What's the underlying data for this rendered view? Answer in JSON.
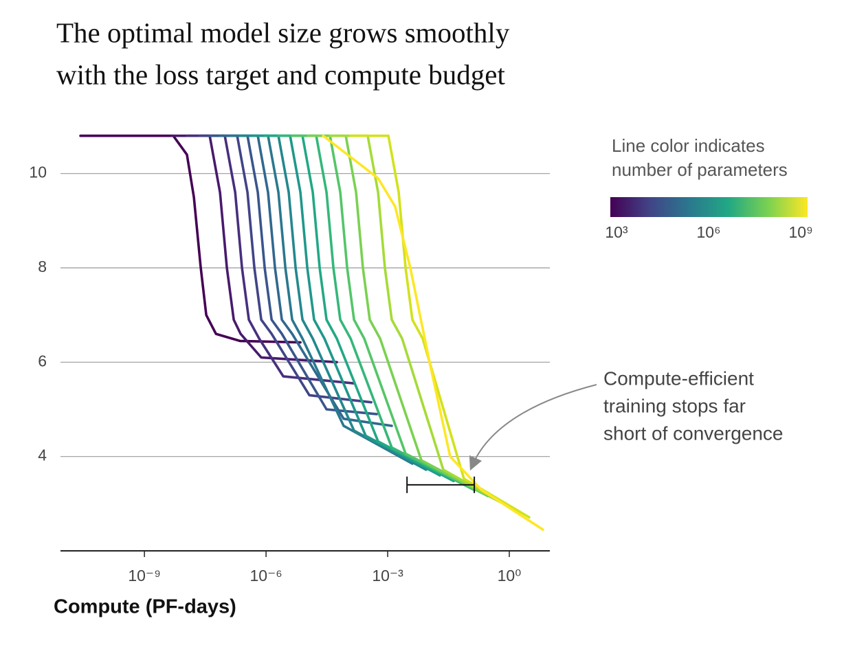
{
  "chart_data": {
    "type": "line",
    "title": [
      "The optimal model size grows smoothly",
      "with the loss target and compute budget"
    ],
    "x_label": "Compute (PF-days)",
    "xscale": "log",
    "xlim": [
      8.5e-12,
      10
    ],
    "xticks": [
      {
        "value": 1e-09,
        "label": "10⁻⁹"
      },
      {
        "value": 1e-06,
        "label": "10⁻⁶"
      },
      {
        "value": 0.001,
        "label": "10⁻³"
      },
      {
        "value": 1,
        "label": "10⁰"
      }
    ],
    "ylim": [
      2,
      11
    ],
    "yticks": [
      4,
      6,
      8,
      10
    ],
    "grid": true,
    "colorbar": {
      "title": [
        "Line color indicates",
        "number of parameters"
      ],
      "scale": "log",
      "lim": [
        631,
        1660000000
      ],
      "ticks": [
        {
          "value": 1000,
          "label": "10³"
        },
        {
          "value": 1000000,
          "label": "10⁶"
        },
        {
          "value": 1000000000,
          "label": "10⁹"
        }
      ],
      "colors": [
        "#440154",
        "#414487",
        "#2a788e",
        "#22a884",
        "#7ad151",
        "#fde725"
      ]
    },
    "annotation": {
      "text": [
        "Compute-efficient",
        "training stops far",
        "short of convergence"
      ],
      "bracket_x": [
        0.003,
        0.137
      ],
      "bracket_y": 3.4
    },
    "series": [
      {
        "color": "#440154",
        "x": [
          2.65e-11,
          5.15e-09,
          1.12e-08,
          1.66e-08,
          2.45e-08,
          3.35e-08,
          5.8e-08,
          2.27e-07,
          7.03e-06
        ],
        "values": [
          10.8,
          10.8,
          10.4,
          9.5,
          8.0,
          7.0,
          6.6,
          6.45,
          6.42
        ]
      },
      {
        "color": "#481a6c",
        "x": [
          4.76e-09,
          4.07e-08,
          7.31e-08,
          1.08e-07,
          1.6e-07,
          2.36e-07,
          7.6e-07,
          5.57e-05
        ],
        "values": [
          10.8,
          10.8,
          9.6,
          8.0,
          6.9,
          6.6,
          6.1,
          6.0
        ]
      },
      {
        "color": "#472f7d",
        "x": [
          1.12e-08,
          9.62e-08,
          1.73e-07,
          2.55e-07,
          3.77e-07,
          6.78e-07,
          2.65e-06,
          0.000148
        ],
        "values": [
          10.8,
          10.8,
          9.6,
          8.0,
          6.9,
          6.5,
          5.7,
          5.55
        ]
      },
      {
        "color": "#414487",
        "x": [
          2.27e-08,
          1.94e-07,
          3.48e-07,
          5.15e-07,
          7.6e-07,
          1.37e-06,
          1.17e-05,
          0.000392
        ],
        "values": [
          10.8,
          10.8,
          9.6,
          8.0,
          6.9,
          6.6,
          5.3,
          5.15
        ]
      },
      {
        "color": "#39568c",
        "x": [
          4.07e-08,
          3.48e-07,
          6.27e-07,
          9.25e-07,
          1.37e-06,
          2.45e-06,
          3.1e-05,
          0.000536
        ],
        "values": [
          10.8,
          10.8,
          9.6,
          8.0,
          6.9,
          6.6,
          5.0,
          4.9
        ]
      },
      {
        "color": "#31688e",
        "x": [
          7.31e-08,
          6.27e-07,
          1.12e-06,
          1.66e-06,
          2.45e-06,
          4.41e-06,
          8.22e-05,
          0.00126
        ],
        "values": [
          10.8,
          10.8,
          9.6,
          8.0,
          6.9,
          6.6,
          4.8,
          4.65
        ]
      },
      {
        "color": "#2a788e",
        "x": [
          1.32e-07,
          1.12e-06,
          2.02e-06,
          2.99e-06,
          4.41e-06,
          7.91e-06,
          8.22e-05,
          0.00407
        ],
        "values": [
          10.8,
          10.8,
          9.6,
          8.0,
          6.9,
          6.5,
          4.65,
          3.85
        ]
      },
      {
        "color": "#23888e",
        "x": [
          2.36e-07,
          2.02e-06,
          3.62e-06,
          5.36e-06,
          7.91e-06,
          1.42e-05,
          0.000148,
          0.00889
        ],
        "values": [
          10.8,
          10.8,
          9.6,
          8.0,
          6.9,
          6.5,
          4.55,
          3.72
        ]
      },
      {
        "color": "#1f988b",
        "x": [
          4.58e-07,
          3.92e-06,
          7.03e-06,
          1.04e-05,
          1.53e-05,
          2.76e-05,
          0.000287,
          0.0194
        ],
        "values": [
          10.8,
          10.8,
          9.6,
          8.0,
          6.9,
          6.5,
          4.44,
          3.6
        ]
      },
      {
        "color": "#22a884",
        "x": [
          9.25e-07,
          7.91e-06,
          1.42e-05,
          2.1e-05,
          3.1e-05,
          5.57e-05,
          0.000579,
          0.0424
        ],
        "values": [
          10.8,
          10.8,
          9.6,
          8.0,
          6.9,
          6.5,
          4.32,
          3.48
        ]
      },
      {
        "color": "#35b779",
        "x": [
          2.02e-06,
          1.73e-05,
          3.1e-05,
          4.58e-05,
          6.78e-05,
          0.000122,
          0.00126,
          0.137
        ],
        "values": [
          10.8,
          10.8,
          9.6,
          8.0,
          6.9,
          6.5,
          4.19,
          3.29
        ]
      },
      {
        "color": "#54c568",
        "x": [
          4.41e-06,
          3.77e-05,
          6.78e-05,
          0.0001,
          0.000148,
          0.000265,
          0.00276,
          0.298
        ],
        "values": [
          10.8,
          10.8,
          9.6,
          8.0,
          6.9,
          6.5,
          4.06,
          3.16
        ]
      },
      {
        "color": "#7ad151",
        "x": [
          1.08e-05,
          9.25e-05,
          0.000166,
          0.000245,
          0.000362,
          0.000651,
          0.00678,
          0.651
        ],
        "values": [
          10.8,
          10.8,
          9.6,
          8.0,
          6.9,
          6.5,
          3.92,
          3.02
        ]
      },
      {
        "color": "#a5db36",
        "x": [
          3.77e-05,
          0.000322,
          0.000579,
          0.000855,
          0.00126,
          0.00227,
          0.0236,
          1.42
        ],
        "values": [
          10.8,
          10.8,
          9.6,
          8.0,
          6.9,
          6.5,
          3.72,
          2.86
        ]
      },
      {
        "color": "#d2e21b",
        "x": [
          0.000122,
          0.00104,
          0.00187,
          0.00276,
          0.00407,
          0.00731,
          0.076,
          3.1
        ],
        "values": [
          10.8,
          10.8,
          9.6,
          8.0,
          6.9,
          6.5,
          3.53,
          2.71
        ]
      },
      {
        "color": "#fde725",
        "x": [
          2.55e-05,
          0.000579,
          0.00153,
          0.00362,
          0.0108,
          0.0348,
          0.202,
          6.77
        ],
        "values": [
          10.8,
          9.9,
          9.3,
          8.0,
          6.0,
          4.0,
          3.3,
          2.45
        ]
      }
    ]
  }
}
